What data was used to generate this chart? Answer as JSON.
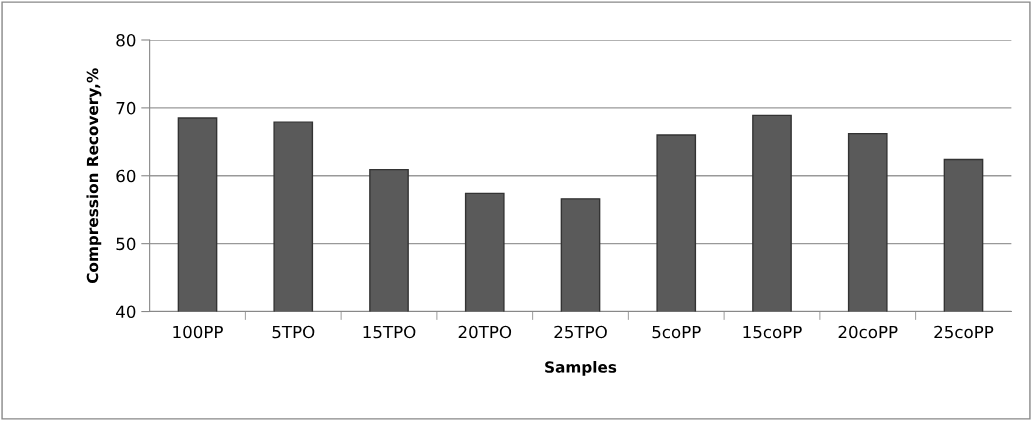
{
  "chart_data": {
    "type": "bar",
    "xlabel": "Samples",
    "ylabel": "Compression Recovery,%",
    "categories": [
      "100PP",
      "5TPO",
      "15TPO",
      "20TPO",
      "25TPO",
      "5coPP",
      "15coPP",
      "20coPP",
      "25coPP"
    ],
    "values": [
      68.5,
      67.9,
      60.9,
      57.4,
      56.6,
      66.0,
      68.9,
      66.2,
      62.4
    ],
    "color": "#5a5a5a",
    "ylim": [
      40,
      80
    ],
    "yticks": [
      40,
      50,
      60,
      70,
      80
    ],
    "grid": "y",
    "legend": false
  }
}
